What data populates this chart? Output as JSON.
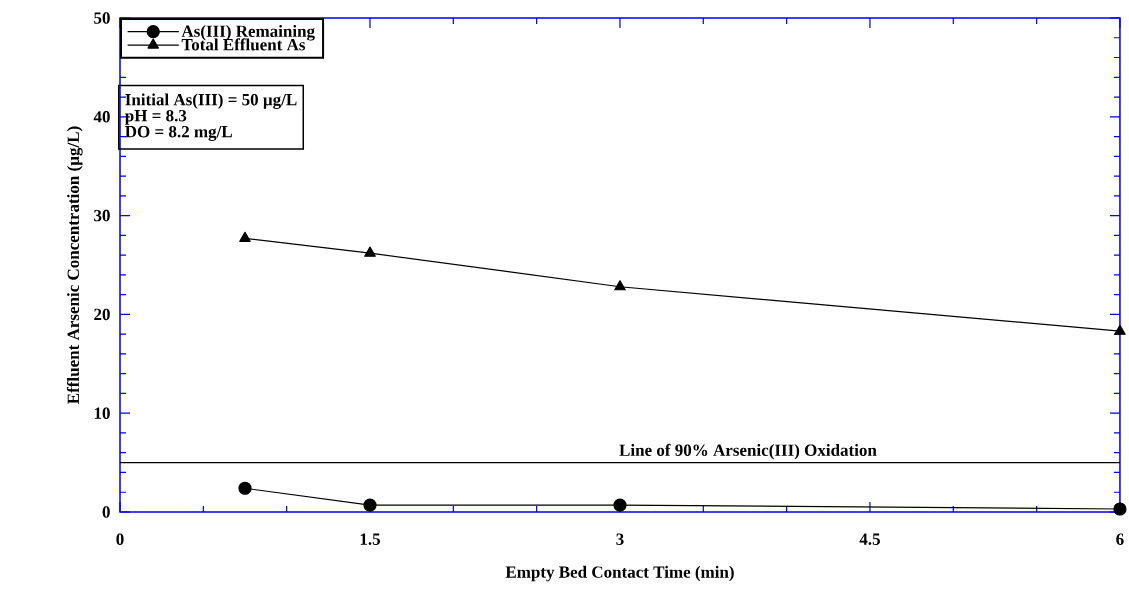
{
  "chart_data": {
    "type": "line",
    "xlabel": "Empty Bed Contact Time (min)",
    "ylabel": "Effluent Arsenic Concentration (µg/L)",
    "x": [
      0.75,
      1.5,
      3,
      6
    ],
    "series": [
      {
        "name": "As(III) Remaining",
        "color": "#000000",
        "marker": "circle",
        "values": [
          2.4,
          0.7,
          0.7,
          0.3
        ]
      },
      {
        "name": "Total Effluent As",
        "color": "#000000",
        "marker": "triangle",
        "values": [
          27.7,
          26.2,
          22.8,
          18.3
        ]
      }
    ],
    "xlim": [
      0,
      6
    ],
    "ylim": [
      0,
      50
    ],
    "xticks": [
      0,
      1.5,
      3,
      4.5,
      6
    ],
    "yticks": [
      0,
      10,
      20,
      30,
      40,
      50
    ],
    "ref_lines": [
      {
        "axis": "y",
        "value": 5,
        "label": "Line of 90% Arsenic(III) Oxidation",
        "color": "#000000"
      }
    ],
    "annotations": [
      "Initial As(III) = 50 µg/L",
      "pH = 8.3",
      "DO = 8.2 mg/L"
    ],
    "legend": "top left",
    "grid": false,
    "line_style": "solid"
  }
}
